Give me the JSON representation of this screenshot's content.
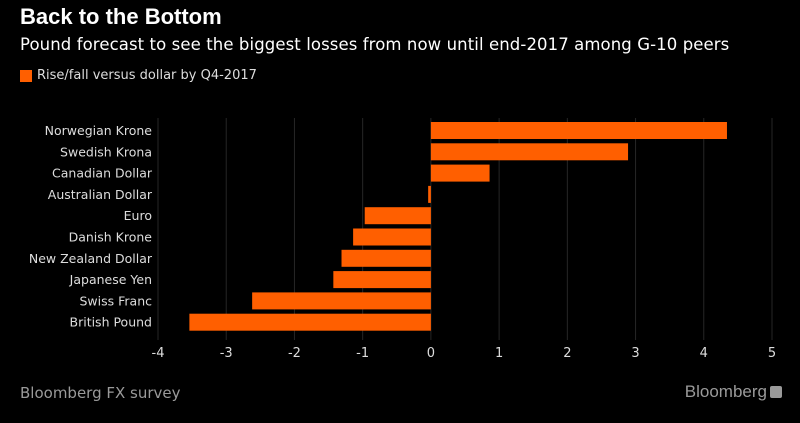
{
  "header": {
    "title": "Back to the Bottom",
    "subtitle": "Pound forecast to see the biggest losses from now until end-2017 among G-10 peers"
  },
  "footer": {
    "source": "Bloomberg FX survey",
    "logo": "Bloomberg"
  },
  "chart_data": {
    "type": "bar",
    "orientation": "horizontal",
    "title": "Back to the Bottom",
    "subtitle": "Pound forecast to see the biggest losses from now until end-2017 among G-10 peers",
    "categories": [
      "Norwegian Krone",
      "Swedish Krona",
      "Canadian Dollar",
      "Australian Dollar",
      "Euro",
      "Danish Krone",
      "New Zealand Dollar",
      "Japanese Yen",
      "Swiss Franc",
      "British Pound"
    ],
    "series": [
      {
        "name": "Rise/fall versus dollar by Q4-2017",
        "color": "#ff5f00",
        "values": [
          4.34,
          2.89,
          0.86,
          -0.04,
          -0.97,
          -1.14,
          -1.31,
          -1.43,
          -2.62,
          -3.54
        ]
      }
    ],
    "xlim": [
      -4,
      5
    ],
    "xticks": [
      "-4",
      "-3",
      "-2",
      "-1",
      "0",
      "1",
      "2",
      "3",
      "4",
      "5"
    ],
    "grid": true,
    "legend": "top-left",
    "background": "#000000"
  }
}
